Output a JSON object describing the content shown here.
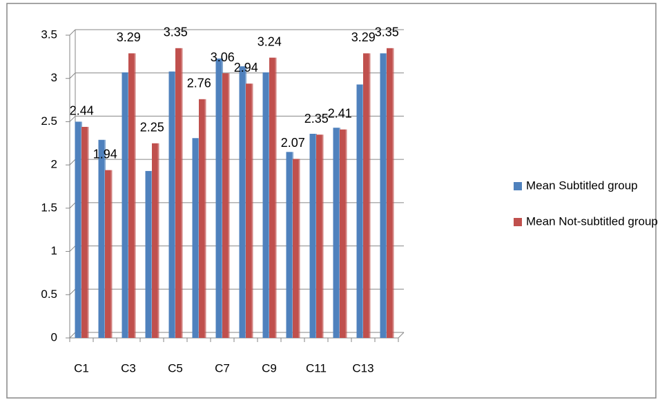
{
  "chart_data": {
    "type": "bar",
    "categories": [
      "C1",
      null,
      "C3",
      null,
      "C5",
      null,
      "C7",
      null,
      "C9",
      null,
      "C11",
      null,
      "C13",
      null
    ],
    "series": [
      {
        "name": "Mean Subtitled group",
        "color": "#4f81bd",
        "values": [
          2.5,
          2.29,
          3.07,
          1.93,
          3.08,
          2.31,
          3.23,
          3.14,
          3.07,
          2.15,
          2.36,
          2.43,
          2.93,
          3.29
        ]
      },
      {
        "name": "Mean Not-subtitled group",
        "color": "#c0504d",
        "values": [
          2.44,
          1.94,
          3.29,
          2.25,
          3.35,
          2.76,
          3.06,
          2.94,
          3.24,
          2.07,
          2.35,
          2.41,
          3.29,
          3.35
        ],
        "data_labels": true
      }
    ],
    "ylim": [
      0,
      3.5
    ],
    "yticks": [
      0,
      0.5,
      1,
      1.5,
      2,
      2.5,
      3,
      3.5
    ],
    "grid": true,
    "legend": "right"
  }
}
